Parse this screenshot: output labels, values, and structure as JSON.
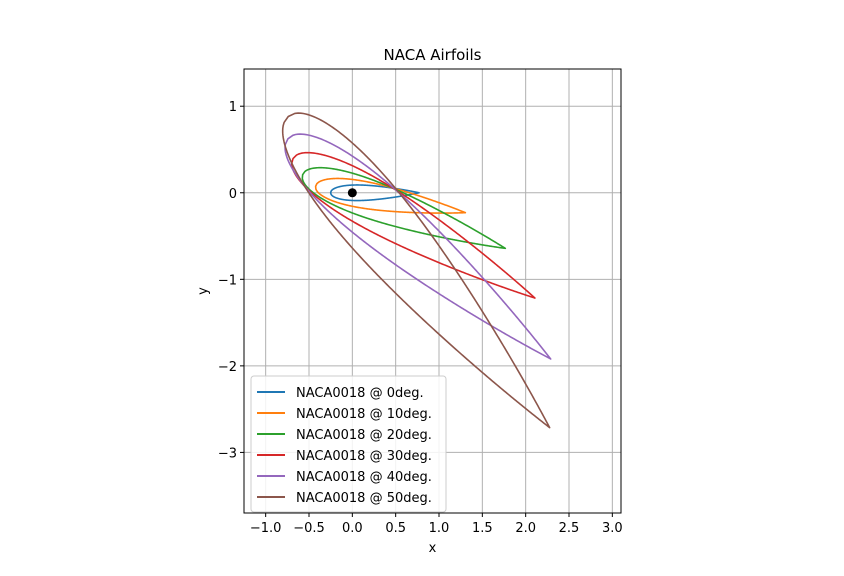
{
  "chart_data": {
    "type": "line",
    "title": "NACA Airfoils",
    "xlabel": "x",
    "ylabel": "y",
    "xlim": [
      -1.25,
      3.1
    ],
    "ylim": [
      -3.7,
      1.43
    ],
    "xticks": [
      -1.0,
      -0.5,
      0.0,
      0.5,
      1.0,
      1.5,
      2.0,
      2.5,
      3.0
    ],
    "xtick_labels": [
      "−1.0",
      "−0.5",
      "0.0",
      "0.5",
      "1.0",
      "1.5",
      "2.0",
      "2.5",
      "3.0"
    ],
    "yticks": [
      1,
      0,
      -1,
      -2,
      -3
    ],
    "ytick_labels": [
      "1",
      "0",
      "−1",
      "−2",
      "−3"
    ],
    "grid": true,
    "legend_position": "lower-left",
    "marker_point": {
      "x": 0.0,
      "y": 0.0,
      "color": "#000000"
    },
    "airfoil": {
      "thickness": 0.18,
      "pivot": [
        0.25,
        0.0
      ],
      "t_range": [
        -0.25,
        0.77
      ]
    },
    "series": [
      {
        "name": "NACA0018 @ 0deg.",
        "angle_deg": 0,
        "color": "#1f77b4"
      },
      {
        "name": "NACA0018 @ 10deg.",
        "angle_deg": 10,
        "color": "#ff7f0e"
      },
      {
        "name": "NACA0018 @ 20deg.",
        "angle_deg": 20,
        "color": "#2ca02c"
      },
      {
        "name": "NACA0018 @ 30deg.",
        "angle_deg": 30,
        "color": "#d62728"
      },
      {
        "name": "NACA0018 @ 40deg.",
        "angle_deg": 40,
        "color": "#9467bd"
      },
      {
        "name": "NACA0018 @ 50deg.",
        "angle_deg": 50,
        "color": "#8c564b"
      }
    ]
  }
}
